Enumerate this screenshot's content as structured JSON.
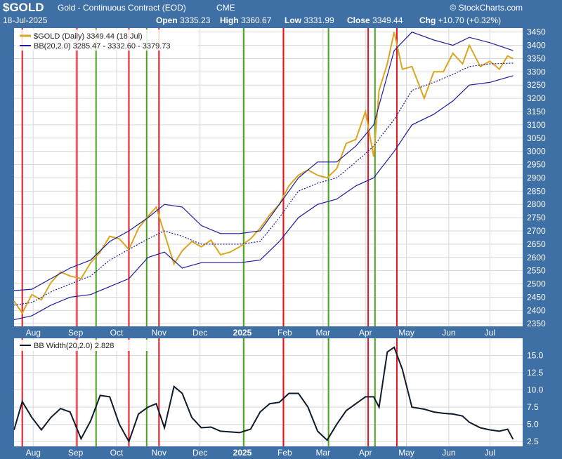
{
  "header": {
    "symbol": "$GOLD",
    "description": "Gold - Continuous Contract (EOD)",
    "exchange": "CME",
    "watermark": "© StockCharts.com",
    "date": "18-Jul-2025",
    "open_label": "Open",
    "open_value": "3335.23",
    "high_label": "High",
    "high_value": "3360.67",
    "low_label": "Low",
    "low_value": "3331.99",
    "close_label": "Close",
    "close_value": "3349.44",
    "chg_label": "Chg",
    "chg_value": "+10.70 (+0.32%)"
  },
  "colors": {
    "frame": "#3e6fa5",
    "panel_bg": "#ffffff",
    "price": "#daa520",
    "band": "#1c1c9c",
    "width_line": "#0d1b2a",
    "red_line": "#e8141e",
    "green_line": "#4ca21c",
    "grid": "#d8d8d8"
  },
  "chart_data": [
    {
      "type": "line",
      "title": "Gold - Continuous Contract (EOD)",
      "legend_position": "top-left",
      "grid": true,
      "ylim": [
        2340,
        3465
      ],
      "y_ticks": [
        2350,
        2400,
        2450,
        2500,
        2550,
        2600,
        2650,
        2700,
        2750,
        2800,
        2850,
        2900,
        2950,
        3000,
        3050,
        3100,
        3150,
        3200,
        3250,
        3300,
        3350,
        3400,
        3450
      ],
      "x_ticks": [
        "Aug",
        "Sep",
        "Oct",
        "Nov",
        "Dec",
        "2025",
        "Feb",
        "Mar",
        "Apr",
        "May",
        "Jun",
        "Jul"
      ],
      "x_tick_dates": [
        "2024-08-01",
        "2024-09-01",
        "2024-10-01",
        "2024-11-01",
        "2024-12-01",
        "2025-01-01",
        "2025-02-01",
        "2025-03-01",
        "2025-04-01",
        "2025-05-01",
        "2025-06-01",
        "2025-07-01"
      ],
      "xlim": [
        "2024-07-18",
        "2025-07-25"
      ],
      "series": [
        {
          "name": "$GOLD (Daily) 3349.44 (18 Jul)",
          "legend_label": "$GOLD (Daily) 3349.44 (18 Jul)",
          "style": "price",
          "x": [
            "2024-07-18",
            "2024-07-24",
            "2024-07-31",
            "2024-08-07",
            "2024-08-14",
            "2024-08-21",
            "2024-08-28",
            "2024-09-05",
            "2024-09-12",
            "2024-09-19",
            "2024-09-26",
            "2024-10-03",
            "2024-10-10",
            "2024-10-17",
            "2024-10-24",
            "2024-10-30",
            "2024-11-05",
            "2024-11-12",
            "2024-11-18",
            "2024-11-25",
            "2024-12-02",
            "2024-12-09",
            "2024-12-16",
            "2024-12-23",
            "2024-12-30",
            "2025-01-07",
            "2025-01-14",
            "2025-01-21",
            "2025-01-28",
            "2025-02-04",
            "2025-02-11",
            "2025-02-18",
            "2025-02-25",
            "2025-03-04",
            "2025-03-11",
            "2025-03-18",
            "2025-03-25",
            "2025-04-01",
            "2025-04-07",
            "2025-04-11",
            "2025-04-17",
            "2025-04-22",
            "2025-04-28",
            "2025-05-05",
            "2025-05-14",
            "2025-05-21",
            "2025-05-28",
            "2025-06-04",
            "2025-06-11",
            "2025-06-16",
            "2025-06-24",
            "2025-07-01",
            "2025-07-08",
            "2025-07-14",
            "2025-07-18"
          ],
          "y": [
            2435,
            2390,
            2460,
            2440,
            2505,
            2545,
            2530,
            2520,
            2580,
            2620,
            2680,
            2670,
            2630,
            2710,
            2755,
            2790,
            2690,
            2575,
            2625,
            2660,
            2640,
            2665,
            2610,
            2620,
            2640,
            2670,
            2710,
            2760,
            2800,
            2870,
            2910,
            2930,
            2910,
            2900,
            2935,
            3030,
            3045,
            3150,
            2980,
            3230,
            3330,
            3450,
            3310,
            3320,
            3200,
            3300,
            3300,
            3370,
            3330,
            3400,
            3320,
            3340,
            3310,
            3360,
            3349.44
          ]
        },
        {
          "name": "BB(20,2.0) 3285.47 - 3332.60 - 3379.73",
          "legend_label": "BB(20,2.0) 3285.47 - 3332.60 - 3379.73",
          "style": "upper",
          "x": [
            "2024-07-18",
            "2024-07-31",
            "2024-08-14",
            "2024-08-28",
            "2024-09-12",
            "2024-09-26",
            "2024-10-10",
            "2024-10-24",
            "2024-11-05",
            "2024-11-18",
            "2024-12-02",
            "2024-12-16",
            "2024-12-30",
            "2025-01-14",
            "2025-01-28",
            "2025-02-11",
            "2025-02-25",
            "2025-03-11",
            "2025-03-25",
            "2025-04-07",
            "2025-04-22",
            "2025-05-05",
            "2025-05-21",
            "2025-06-04",
            "2025-06-16",
            "2025-07-01",
            "2025-07-18"
          ],
          "y": [
            2475,
            2480,
            2520,
            2560,
            2590,
            2660,
            2700,
            2750,
            2800,
            2790,
            2720,
            2690,
            2690,
            2700,
            2800,
            2900,
            2960,
            2960,
            3020,
            3100,
            3380,
            3450,
            3420,
            3400,
            3430,
            3410,
            3380
          ]
        },
        {
          "name": "BB(20,2.0) 3285.47 - 3332.60 - 3379.73",
          "style": "middle",
          "x": [
            "2024-07-18",
            "2024-07-31",
            "2024-08-14",
            "2024-08-28",
            "2024-09-12",
            "2024-09-26",
            "2024-10-10",
            "2024-10-24",
            "2024-11-05",
            "2024-11-18",
            "2024-12-02",
            "2024-12-16",
            "2024-12-30",
            "2025-01-14",
            "2025-01-28",
            "2025-02-11",
            "2025-02-25",
            "2025-03-11",
            "2025-03-25",
            "2025-04-07",
            "2025-04-22",
            "2025-05-05",
            "2025-05-21",
            "2025-06-04",
            "2025-06-16",
            "2025-07-01",
            "2025-07-18"
          ],
          "y": [
            2420,
            2430,
            2470,
            2500,
            2530,
            2590,
            2630,
            2670,
            2700,
            2680,
            2650,
            2650,
            2650,
            2660,
            2750,
            2850,
            2880,
            2900,
            2960,
            3020,
            3120,
            3230,
            3260,
            3290,
            3320,
            3330,
            3332.6
          ]
        },
        {
          "name": "BB(20,2.0) 3285.47 - 3332.60 - 3379.73",
          "style": "lower",
          "x": [
            "2024-07-18",
            "2024-07-31",
            "2024-08-14",
            "2024-08-28",
            "2024-09-12",
            "2024-09-26",
            "2024-10-10",
            "2024-10-24",
            "2024-11-05",
            "2024-11-18",
            "2024-12-02",
            "2024-12-16",
            "2024-12-30",
            "2025-01-14",
            "2025-01-28",
            "2025-02-11",
            "2025-02-25",
            "2025-03-11",
            "2025-03-25",
            "2025-04-07",
            "2025-04-22",
            "2025-05-05",
            "2025-05-21",
            "2025-06-04",
            "2025-06-16",
            "2025-07-01",
            "2025-07-18"
          ],
          "y": [
            2365,
            2380,
            2420,
            2450,
            2460,
            2490,
            2520,
            2600,
            2620,
            2560,
            2580,
            2580,
            2580,
            2590,
            2660,
            2750,
            2800,
            2820,
            2870,
            2900,
            3000,
            3100,
            3140,
            3190,
            3250,
            3260,
            3285.47
          ]
        }
      ],
      "vertical_markers": [
        {
          "color": "red",
          "x": [
            "2024-07-24",
            "2024-09-02",
            "2024-10-10",
            "2024-11-01",
            "2025-01-31",
            "2025-04-03",
            "2025-04-24"
          ]
        },
        {
          "color": "green",
          "x": [
            "2024-09-16",
            "2024-10-23",
            "2025-01-02",
            "2025-03-05",
            "2025-04-08"
          ]
        }
      ]
    },
    {
      "type": "line",
      "legend_position": "top-left",
      "grid": true,
      "ylim": [
        1.8,
        17.5
      ],
      "y_ticks": [
        "2.5",
        "5.0",
        "7.5",
        "10.0",
        "12.5",
        "15.0"
      ],
      "series": [
        {
          "name": "BB Width(20,2.0) 2.828",
          "legend_label": "BB Width(20,2.0) 2.828",
          "x": [
            "2024-07-18",
            "2024-07-24",
            "2024-07-31",
            "2024-08-07",
            "2024-08-14",
            "2024-08-21",
            "2024-08-28",
            "2024-09-05",
            "2024-09-12",
            "2024-09-19",
            "2024-09-26",
            "2024-10-03",
            "2024-10-10",
            "2024-10-17",
            "2024-10-24",
            "2024-10-30",
            "2024-11-05",
            "2024-11-12",
            "2024-11-18",
            "2024-11-25",
            "2024-12-02",
            "2024-12-09",
            "2024-12-16",
            "2024-12-23",
            "2024-12-30",
            "2025-01-07",
            "2025-01-14",
            "2025-01-21",
            "2025-01-28",
            "2025-02-04",
            "2025-02-11",
            "2025-02-18",
            "2025-02-25",
            "2025-03-04",
            "2025-03-11",
            "2025-03-18",
            "2025-03-25",
            "2025-04-01",
            "2025-04-07",
            "2025-04-11",
            "2025-04-17",
            "2025-04-22",
            "2025-04-28",
            "2025-05-05",
            "2025-05-14",
            "2025-05-21",
            "2025-05-28",
            "2025-06-04",
            "2025-06-11",
            "2025-06-16",
            "2025-06-24",
            "2025-07-01",
            "2025-07-08",
            "2025-07-14",
            "2025-07-18"
          ],
          "y": [
            4.2,
            8.3,
            6.0,
            4.2,
            6.0,
            7.3,
            6.8,
            2.9,
            5.5,
            9.2,
            9.0,
            5.0,
            2.5,
            6.5,
            7.5,
            8.0,
            4.5,
            10.5,
            9.5,
            6.0,
            4.5,
            4.6,
            4.0,
            3.9,
            3.8,
            4.3,
            6.8,
            8.0,
            8.2,
            9.5,
            9.5,
            7.5,
            4.0,
            2.7,
            5.0,
            7.0,
            8.0,
            9.0,
            9.0,
            7.5,
            15.5,
            16.2,
            13.0,
            7.5,
            7.2,
            6.8,
            6.6,
            6.5,
            6.2,
            5.3,
            4.5,
            4.2,
            4.0,
            4.3,
            2.828
          ]
        }
      ]
    }
  ]
}
